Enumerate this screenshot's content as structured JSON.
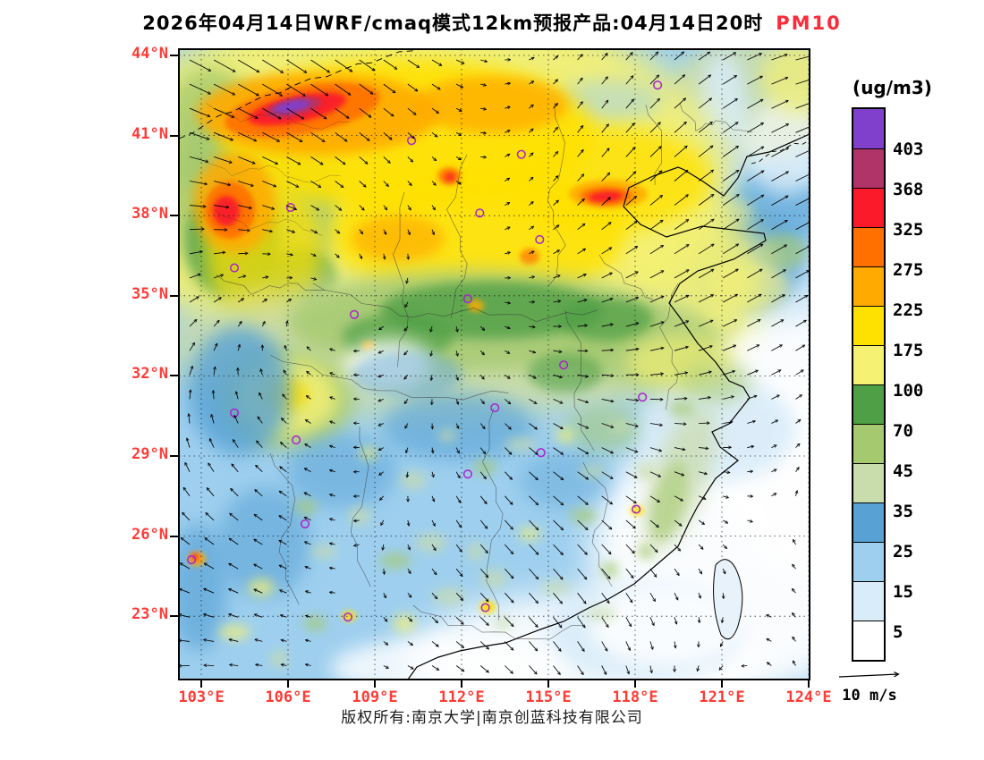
{
  "title": {
    "main": "2026年04月14日WRF/cmaq模式12km预报产品:04月14日20时",
    "pollutant": "PM10",
    "pollutant_color": "#fa2b3a"
  },
  "axes": {
    "lat_labels": [
      "44°N",
      "41°N",
      "38°N",
      "35°N",
      "32°N",
      "29°N",
      "26°N",
      "23°N"
    ],
    "lon_labels": [
      "103°E",
      "106°E",
      "109°E",
      "112°E",
      "115°E",
      "118°E",
      "121°E",
      "124°E"
    ],
    "label_color": "#ff3b35"
  },
  "legend": {
    "unit": "(ug/m3)",
    "levels_top_to_bottom": [
      "403",
      "368",
      "325",
      "275",
      "225",
      "175",
      "100",
      "70",
      "45",
      "35",
      "25",
      "15",
      "5"
    ],
    "colors_top_to_bottom": [
      "#8040cc",
      "#b03468",
      "#fa1a2a",
      "#ff7000",
      "#ffaa00",
      "#ffe100",
      "#f4f173",
      "#4f9f46",
      "#a5c96f",
      "#c9dcac",
      "#57a1d5",
      "#9ecfee",
      "#d9ecf9",
      "#ffffff"
    ]
  },
  "wind_scale": {
    "label": "10 m/s"
  },
  "footer": {
    "text": "版权所有:南京大学|南京创蓝科技有限公司"
  },
  "map": {
    "station_marker_color": "#aa22cc",
    "stations": [
      [
        0.369,
        0.145
      ],
      [
        0.543,
        0.167
      ],
      [
        0.759,
        0.057
      ],
      [
        0.177,
        0.251
      ],
      [
        0.477,
        0.26
      ],
      [
        0.572,
        0.302
      ],
      [
        0.088,
        0.347
      ],
      [
        0.458,
        0.396
      ],
      [
        0.278,
        0.421
      ],
      [
        0.61,
        0.501
      ],
      [
        0.735,
        0.552
      ],
      [
        0.501,
        0.569
      ],
      [
        0.088,
        0.577
      ],
      [
        0.186,
        0.62
      ],
      [
        0.574,
        0.64
      ],
      [
        0.458,
        0.674
      ],
      [
        0.725,
        0.73
      ],
      [
        0.2,
        0.753
      ],
      [
        0.02,
        0.81
      ],
      [
        0.486,
        0.886
      ],
      [
        0.268,
        0.901
      ]
    ]
  }
}
